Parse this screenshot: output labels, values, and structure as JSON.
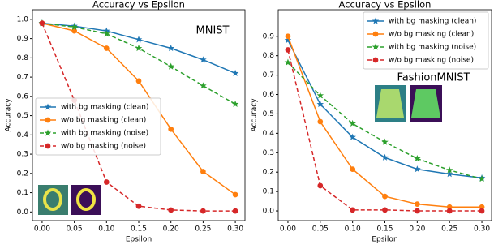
{
  "chart_data": [
    {
      "type": "line",
      "title": "Accuracy vs Epsilon",
      "xlabel": "Epsilon",
      "ylabel": "Accuracy",
      "annotation": "MNIST",
      "x": [
        0,
        0.05,
        0.1,
        0.15,
        0.2,
        0.25,
        0.3
      ],
      "xlim": [
        -0.015,
        0.315
      ],
      "ylim": [
        -0.045,
        1.05
      ],
      "xticks": [
        {
          "value": 0,
          "label": "0.00"
        },
        {
          "value": 0.05,
          "label": "0.05"
        },
        {
          "value": 0.1,
          "label": "0.10"
        },
        {
          "value": 0.15,
          "label": "0.15"
        },
        {
          "value": 0.2,
          "label": "0.20"
        },
        {
          "value": 0.25,
          "label": "0.25"
        },
        {
          "value": 0.3,
          "label": "0.30"
        }
      ],
      "yticks": [
        {
          "value": 0,
          "label": "0.0"
        },
        {
          "value": 0.1,
          "label": "0.1"
        },
        {
          "value": 0.2,
          "label": "0.2"
        },
        {
          "value": 0.3,
          "label": "0.3"
        },
        {
          "value": 0.4,
          "label": "0.4"
        },
        {
          "value": 0.5,
          "label": "0.5"
        },
        {
          "value": 0.6,
          "label": "0.6"
        },
        {
          "value": 0.7,
          "label": "0.7"
        },
        {
          "value": 0.8,
          "label": "0.8"
        },
        {
          "value": 0.9,
          "label": "0.9"
        },
        {
          "value": 1,
          "label": "1.0"
        }
      ],
      "legend": "center left",
      "series": [
        {
          "name": "with bg masking (clean)",
          "color": "#1f77b4",
          "marker": "star",
          "linestyle": "solid",
          "values": [
            0.98,
            0.965,
            0.94,
            0.895,
            0.85,
            0.79,
            0.72
          ]
        },
        {
          "name": "w/o bg masking (clean)",
          "color": "#ff7f0e",
          "marker": "circle",
          "linestyle": "solid",
          "values": [
            0.98,
            0.94,
            0.85,
            0.68,
            0.43,
            0.21,
            0.09
          ]
        },
        {
          "name": "with bg masking (noise)",
          "color": "#2ca02c",
          "marker": "star",
          "linestyle": "dashed",
          "values": [
            0.98,
            0.96,
            0.925,
            0.85,
            0.755,
            0.655,
            0.56
          ]
        },
        {
          "name": "w/o bg masking (noise)",
          "color": "#d62728",
          "marker": "circle",
          "linestyle": "dashed",
          "values": [
            0.98,
            0.58,
            0.155,
            0.03,
            0.01,
            0.005,
            0.005
          ]
        }
      ]
    },
    {
      "type": "line",
      "title": "Accuracy vs Epsilon",
      "xlabel": "Epsilon",
      "ylabel": "Accuracy",
      "annotation": "FashionMNIST",
      "x": [
        0,
        0.05,
        0.1,
        0.15,
        0.2,
        0.25,
        0.3
      ],
      "xlim": [
        -0.015,
        0.315
      ],
      "ylim": [
        -0.05,
        1.037
      ],
      "xticks": [
        {
          "value": 0,
          "label": "0.00"
        },
        {
          "value": 0.05,
          "label": "0.05"
        },
        {
          "value": 0.1,
          "label": "0.10"
        },
        {
          "value": 0.15,
          "label": "0.15"
        },
        {
          "value": 0.2,
          "label": "0.20"
        },
        {
          "value": 0.25,
          "label": "0.25"
        },
        {
          "value": 0.3,
          "label": "0.30"
        }
      ],
      "yticks": [
        {
          "value": 0,
          "label": "0.0"
        },
        {
          "value": 0.1,
          "label": "0.1"
        },
        {
          "value": 0.2,
          "label": "0.2"
        },
        {
          "value": 0.3,
          "label": "0.3"
        },
        {
          "value": 0.4,
          "label": "0.4"
        },
        {
          "value": 0.5,
          "label": "0.5"
        },
        {
          "value": 0.6,
          "label": "0.6"
        },
        {
          "value": 0.7,
          "label": "0.7"
        },
        {
          "value": 0.8,
          "label": "0.8"
        },
        {
          "value": 0.9,
          "label": "0.9"
        }
      ],
      "legend": "upper right",
      "series": [
        {
          "name": "with bg masking (clean)",
          "color": "#1f77b4",
          "marker": "star",
          "linestyle": "solid",
          "values": [
            0.88,
            0.55,
            0.38,
            0.275,
            0.215,
            0.19,
            0.17
          ]
        },
        {
          "name": "w/o bg masking (clean)",
          "color": "#ff7f0e",
          "marker": "circle",
          "linestyle": "solid",
          "values": [
            0.9,
            0.46,
            0.215,
            0.075,
            0.035,
            0.02,
            0.02
          ]
        },
        {
          "name": "with bg masking (noise)",
          "color": "#2ca02c",
          "marker": "star",
          "linestyle": "dashed",
          "values": [
            0.765,
            0.595,
            0.45,
            0.355,
            0.27,
            0.21,
            0.165
          ]
        },
        {
          "name": "w/o bg masking (noise)",
          "color": "#d62728",
          "marker": "circle",
          "linestyle": "dashed",
          "values": [
            0.83,
            0.13,
            0.005,
            0.005,
            0,
            0,
            0
          ]
        }
      ]
    }
  ]
}
